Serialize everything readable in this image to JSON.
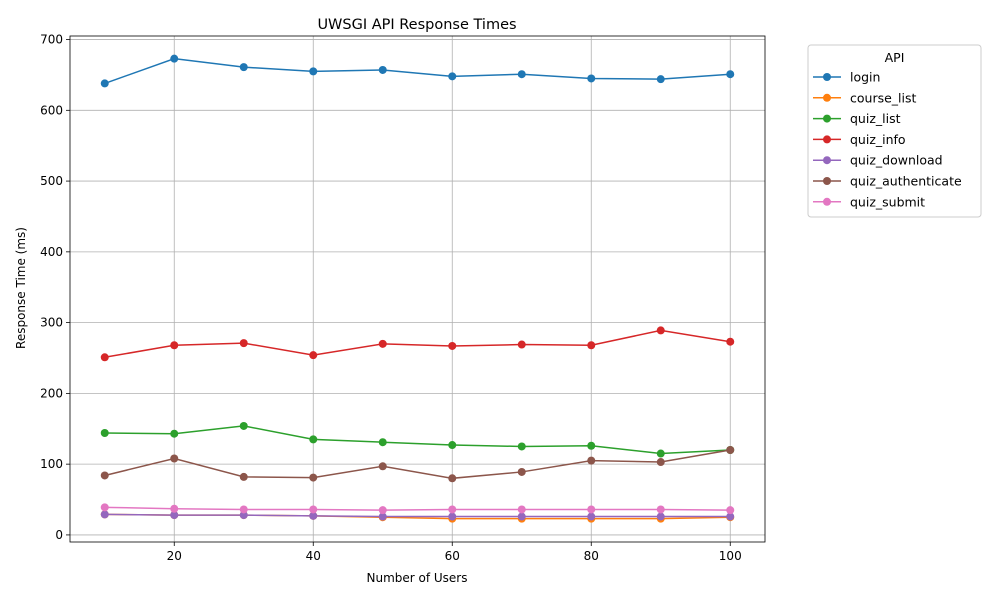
{
  "chart_data": {
    "type": "line",
    "title": "UWSGI API Response Times",
    "xlabel": "Number of Users",
    "ylabel": "Response Time (ms)",
    "x": [
      10,
      20,
      30,
      40,
      50,
      60,
      70,
      80,
      90,
      100
    ],
    "xlim": [
      5,
      105
    ],
    "ylim": [
      -10,
      705
    ],
    "xticks": [
      20,
      40,
      60,
      80,
      100
    ],
    "yticks": [
      0,
      100,
      200,
      300,
      400,
      500,
      600,
      700
    ],
    "grid": true,
    "legend_title": "API",
    "legend_placement": "outside right, upper",
    "markers": "circle",
    "series": [
      {
        "name": "login",
        "color": "#1f77b4",
        "values": [
          638,
          673,
          661,
          655,
          657,
          648,
          651,
          645,
          644,
          651
        ]
      },
      {
        "name": "course_list",
        "color": "#ff7f0e",
        "values": [
          29,
          28,
          28,
          27,
          25,
          23,
          23,
          23,
          23,
          25
        ]
      },
      {
        "name": "quiz_list",
        "color": "#2ca02c",
        "values": [
          144,
          143,
          154,
          135,
          131,
          127,
          125,
          126,
          115,
          120
        ]
      },
      {
        "name": "quiz_info",
        "color": "#d62728",
        "values": [
          251,
          268,
          271,
          254,
          270,
          267,
          269,
          268,
          289,
          273
        ]
      },
      {
        "name": "quiz_download",
        "color": "#9467bd",
        "values": [
          29,
          28,
          28,
          27,
          26,
          26,
          26,
          26,
          26,
          26
        ]
      },
      {
        "name": "quiz_authenticate",
        "color": "#8c564b",
        "values": [
          84,
          108,
          82,
          81,
          97,
          80,
          89,
          105,
          103,
          120
        ]
      },
      {
        "name": "quiz_submit",
        "color": "#e377c2",
        "values": [
          39,
          37,
          36,
          36,
          35,
          36,
          36,
          36,
          36,
          35
        ]
      }
    ]
  }
}
